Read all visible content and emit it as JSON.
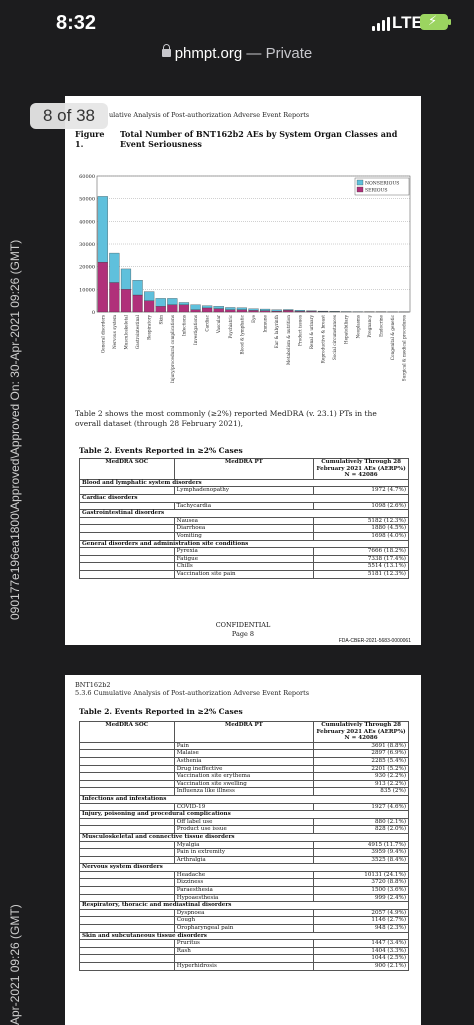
{
  "status_bar": {
    "time": "8:32",
    "network": "LTE"
  },
  "browser": {
    "host": "phmpt.org",
    "mode": "— Private"
  },
  "viewer": {
    "page_indicator": "8 of 38"
  },
  "stamps": {
    "page1": "090177e196ea1800\\Approved\\Approved On: 30-Apr-2021 09:26 (GMT)",
    "page2": "Apr-2021 09:26 (GMT)"
  },
  "page1": {
    "running_head": "ulative Analysis of Post-authorization Adverse Event Reports",
    "figure_label": "Figure 1.",
    "figure_title": "Total Number of BNT162b2 AEs by System Organ Classes and Event Seriousness",
    "paragraph": "Table 2 shows the most commonly (≥2%) reported MedDRA (v. 23.1) PTs in the overall dataset (through 28 February 2021),",
    "table_title": "Table 2.   Events Reported in ≥2% Cases",
    "footer_confidential": "CONFIDENTIAL",
    "footer_page": "Page 8",
    "fda_number": "FDA-CBER-2021-5683-0000061"
  },
  "table_headers": {
    "soc": "MedDRA SOC",
    "pt": "MedDRA PT",
    "cum": "Cumulatively Through 28 February 2021 AEs (AERP%) N = 42086"
  },
  "page1_rows": [
    {
      "soc": "Blood and lymphatic system disorders",
      "pt": "",
      "val": ""
    },
    {
      "soc": "",
      "pt": "Lymphadenopathy",
      "val": "1972 (4.7%)"
    },
    {
      "soc": "Cardiac disorders",
      "pt": "",
      "val": ""
    },
    {
      "soc": "",
      "pt": "Tachycardia",
      "val": "1098 (2.6%)"
    },
    {
      "soc": "Gastrointestinal disorders",
      "pt": "",
      "val": ""
    },
    {
      "soc": "",
      "pt": "Nausea",
      "val": "5182 (12.3%)"
    },
    {
      "soc": "",
      "pt": "Diarrhoea",
      "val": "1880 (4.5%)"
    },
    {
      "soc": "",
      "pt": "Vomiting",
      "val": "1698 (4.0%)"
    },
    {
      "soc": "General disorders and administration site conditions",
      "pt": "",
      "val": ""
    },
    {
      "soc": "",
      "pt": "Pyrexia",
      "val": "7666 (18.2%)"
    },
    {
      "soc": "",
      "pt": "Fatigue",
      "val": "7338 (17.4%)"
    },
    {
      "soc": "",
      "pt": "Chills",
      "val": "5514 (13.1%)"
    },
    {
      "soc": "",
      "pt": "Vaccination site pain",
      "val": "5181 (12.3%)"
    }
  ],
  "page2": {
    "running_head_1": "BNT162b2",
    "running_head_2": "5.3.6 Cumulative Analysis of Post-authorization Adverse Event Reports",
    "table_title": "Table 2.   Events Reported in ≥2% Cases"
  },
  "page2_rows": [
    {
      "soc": "",
      "pt": "Pain",
      "val": "3691 (8.8%)"
    },
    {
      "soc": "",
      "pt": "Malaise",
      "val": "2897 (6.9%)"
    },
    {
      "soc": "",
      "pt": "Asthenia",
      "val": "2285 (5.4%)"
    },
    {
      "soc": "",
      "pt": "Drug ineffective",
      "val": "2201 (5.2%)"
    },
    {
      "soc": "",
      "pt": "Vaccination site erythema",
      "val": "930 (2.2%)"
    },
    {
      "soc": "",
      "pt": "Vaccination site swelling",
      "val": "913 (2.2%)"
    },
    {
      "soc": "",
      "pt": "Influenza like illness",
      "val": "835 (2%)"
    },
    {
      "soc": "Infections and infestations",
      "pt": "",
      "val": ""
    },
    {
      "soc": "",
      "pt": "COVID-19",
      "val": "1927 (4.6%)"
    },
    {
      "soc": "Injury, poisoning and procedural complications",
      "pt": "",
      "val": ""
    },
    {
      "soc": "",
      "pt": "Off label use",
      "val": "880 (2.1%)"
    },
    {
      "soc": "",
      "pt": "Product use issue",
      "val": "828 (2.0%)"
    },
    {
      "soc": "Musculoskeletal and connective tissue disorders",
      "pt": "",
      "val": ""
    },
    {
      "soc": "",
      "pt": "Myalgia",
      "val": "4915 (11.7%)"
    },
    {
      "soc": "",
      "pt": "Pain in extremity",
      "val": "3959 (9.4%)"
    },
    {
      "soc": "",
      "pt": "Arthralgia",
      "val": "3525 (8.4%)"
    },
    {
      "soc": "Nervous system disorders",
      "pt": "",
      "val": ""
    },
    {
      "soc": "",
      "pt": "Headache",
      "val": "10131 (24.1%)"
    },
    {
      "soc": "",
      "pt": "Dizziness",
      "val": "3720 (8.8%)"
    },
    {
      "soc": "",
      "pt": "Paraesthesia",
      "val": "1500 (3.6%)"
    },
    {
      "soc": "",
      "pt": "Hypoaesthesia",
      "val": "999 (2.4%)"
    },
    {
      "soc": "Respiratory, thoracic and mediastinal disorders",
      "pt": "",
      "val": ""
    },
    {
      "soc": "",
      "pt": "Dyspnoea",
      "val": "2057 (4.9%)"
    },
    {
      "soc": "",
      "pt": "Cough",
      "val": "1146 (2.7%)"
    },
    {
      "soc": "",
      "pt": "Oropharyngeal pain",
      "val": "948 (2.3%)"
    },
    {
      "soc": "Skin and subcutaneous tissue disorders",
      "pt": "",
      "val": ""
    },
    {
      "soc": "",
      "pt": "Pruritus",
      "val": "1447 (3.4%)"
    },
    {
      "soc": "",
      "pt": "Rash",
      "val": "1404 (3.3%)"
    },
    {
      "soc": "",
      "pt": "",
      "val": "1044 (2.5%)"
    },
    {
      "soc": "",
      "pt": "Hyperhidrosis",
      "val": "900 (2.1%)"
    }
  ],
  "colors": {
    "nonserious": "#5fc0dc",
    "serious": "#b0307a"
  },
  "chart_data": {
    "type": "bar",
    "stacked": true,
    "ylim": [
      0,
      60000
    ],
    "yticks": [
      "0",
      "10000",
      "20000",
      "30000",
      "40000",
      "50000",
      "60000"
    ],
    "categories": [
      "General disorders",
      "Nervous system",
      "Musculoskeletal",
      "Gastrointestinal",
      "Respiratory",
      "Skin",
      "Injury/procedural complications",
      "Infections",
      "Investigations",
      "Cardiac",
      "Vascular",
      "Psychiatric",
      "Blood & lymphatic",
      "Eye",
      "Immune",
      "Ear & labyrinth",
      "Metabolism & nutrition",
      "Product issues",
      "Renal & urinary",
      "Reproductive & breast",
      "Social circumstances",
      "Hepatobiliary",
      "Neoplasms",
      "Pregnancy",
      "Endocrine",
      "Congenital & genetic",
      "Surgical & medical procedures"
    ],
    "series": [
      {
        "name": "NONSERIOUS",
        "values": [
          29000,
          13000,
          9000,
          6500,
          4000,
          3500,
          2800,
          1000,
          2200,
          1000,
          1000,
          1000,
          900,
          700,
          700,
          600,
          300,
          500,
          300,
          200,
          150,
          100,
          80,
          50,
          50,
          30,
          20
        ]
      },
      {
        "name": "SERIOUS",
        "values": [
          22000,
          13000,
          10000,
          7500,
          5000,
          2500,
          3200,
          3200,
          1000,
          1800,
          1500,
          1000,
          1000,
          700,
          600,
          400,
          800,
          300,
          300,
          200,
          150,
          100,
          80,
          50,
          50,
          30,
          20
        ]
      }
    ],
    "legend": "top-right"
  }
}
